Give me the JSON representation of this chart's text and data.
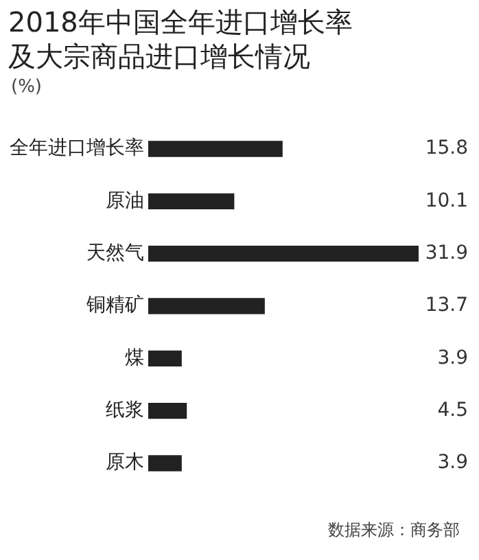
{
  "chart_data": {
    "type": "bar",
    "orientation": "horizontal",
    "title": "2018年中国全年进口增长率及大宗商品进口增长情况",
    "subtitle": "(%)",
    "categories": [
      "全年进口增长率",
      "原油",
      "天然气",
      "铜精矿",
      "煤",
      "纸浆",
      "原木"
    ],
    "values": [
      15.8,
      10.1,
      31.9,
      13.7,
      3.9,
      4.5,
      3.9
    ],
    "color": "#222222",
    "xlim": [
      0,
      31.9
    ],
    "tick_labels": "y",
    "grid": false,
    "legend": false,
    "data_labels": true,
    "annotations": [
      "数据来源：商务部"
    ]
  }
}
